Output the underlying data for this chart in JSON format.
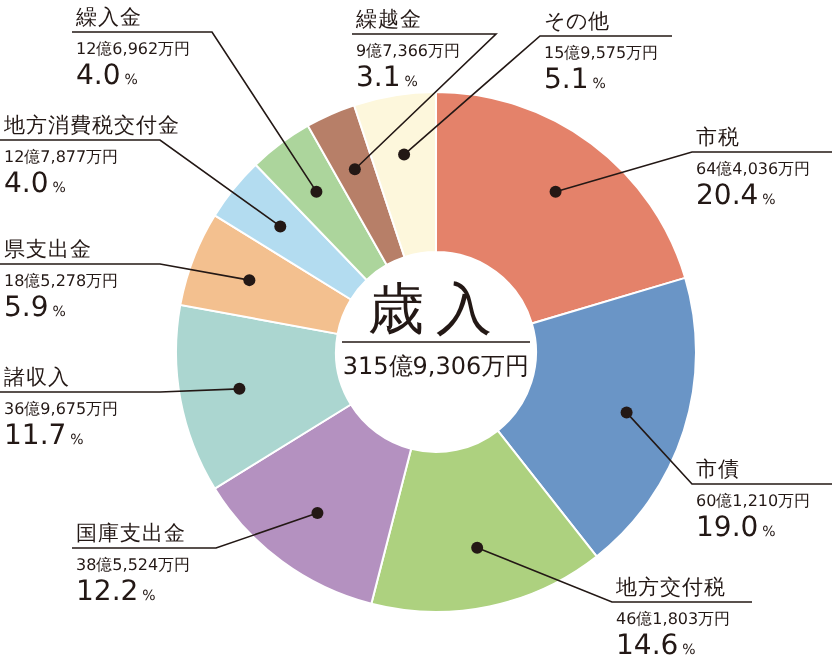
{
  "chart_data": {
    "type": "donut",
    "title": "歳入",
    "subtitle": "315億9,306万円",
    "categories": [
      "市税",
      "市債",
      "地方交付税",
      "国庫支出金",
      "諸収入",
      "県支出金",
      "地方消費税交付金",
      "繰入金",
      "繰越金",
      "その他"
    ],
    "values": [
      20.4,
      19.0,
      14.6,
      12.2,
      11.7,
      5.9,
      4.0,
      4.0,
      3.1,
      5.1
    ],
    "value_labels": [
      "20.4%",
      "19.0%",
      "14.6%",
      "12.2%",
      "11.7%",
      "5.9%",
      "4.0%",
      "4.0%",
      "3.1%",
      "5.1%"
    ],
    "colors": [
      "#e4826a",
      "#6a95c6",
      "#add17f",
      "#b491c0",
      "#abd6d0",
      "#f3c08f",
      "#b3dcf0",
      "#acd59c",
      "#b77f68",
      "#fdf7dc"
    ],
    "annotations": [
      {
        "text": "64億4,036万円",
        "x": "市税"
      },
      {
        "text": "60億1,210万円",
        "x": "市債"
      },
      {
        "text": "46億1,803万円",
        "x": "地方交付税"
      },
      {
        "text": "38億5,524万円",
        "x": "国庫支出金"
      },
      {
        "text": "36億9,675万円",
        "x": "諸収入"
      },
      {
        "text": "18億5,278万円",
        "x": "県支出金"
      },
      {
        "text": "12億7,877万円",
        "x": "地方消費税交付金"
      },
      {
        "text": "12億6,962万円",
        "x": "繰入金"
      },
      {
        "text": "9億7,366万円",
        "x": "繰越金"
      },
      {
        "text": "15億9,575万円",
        "x": "その他"
      }
    ]
  }
}
